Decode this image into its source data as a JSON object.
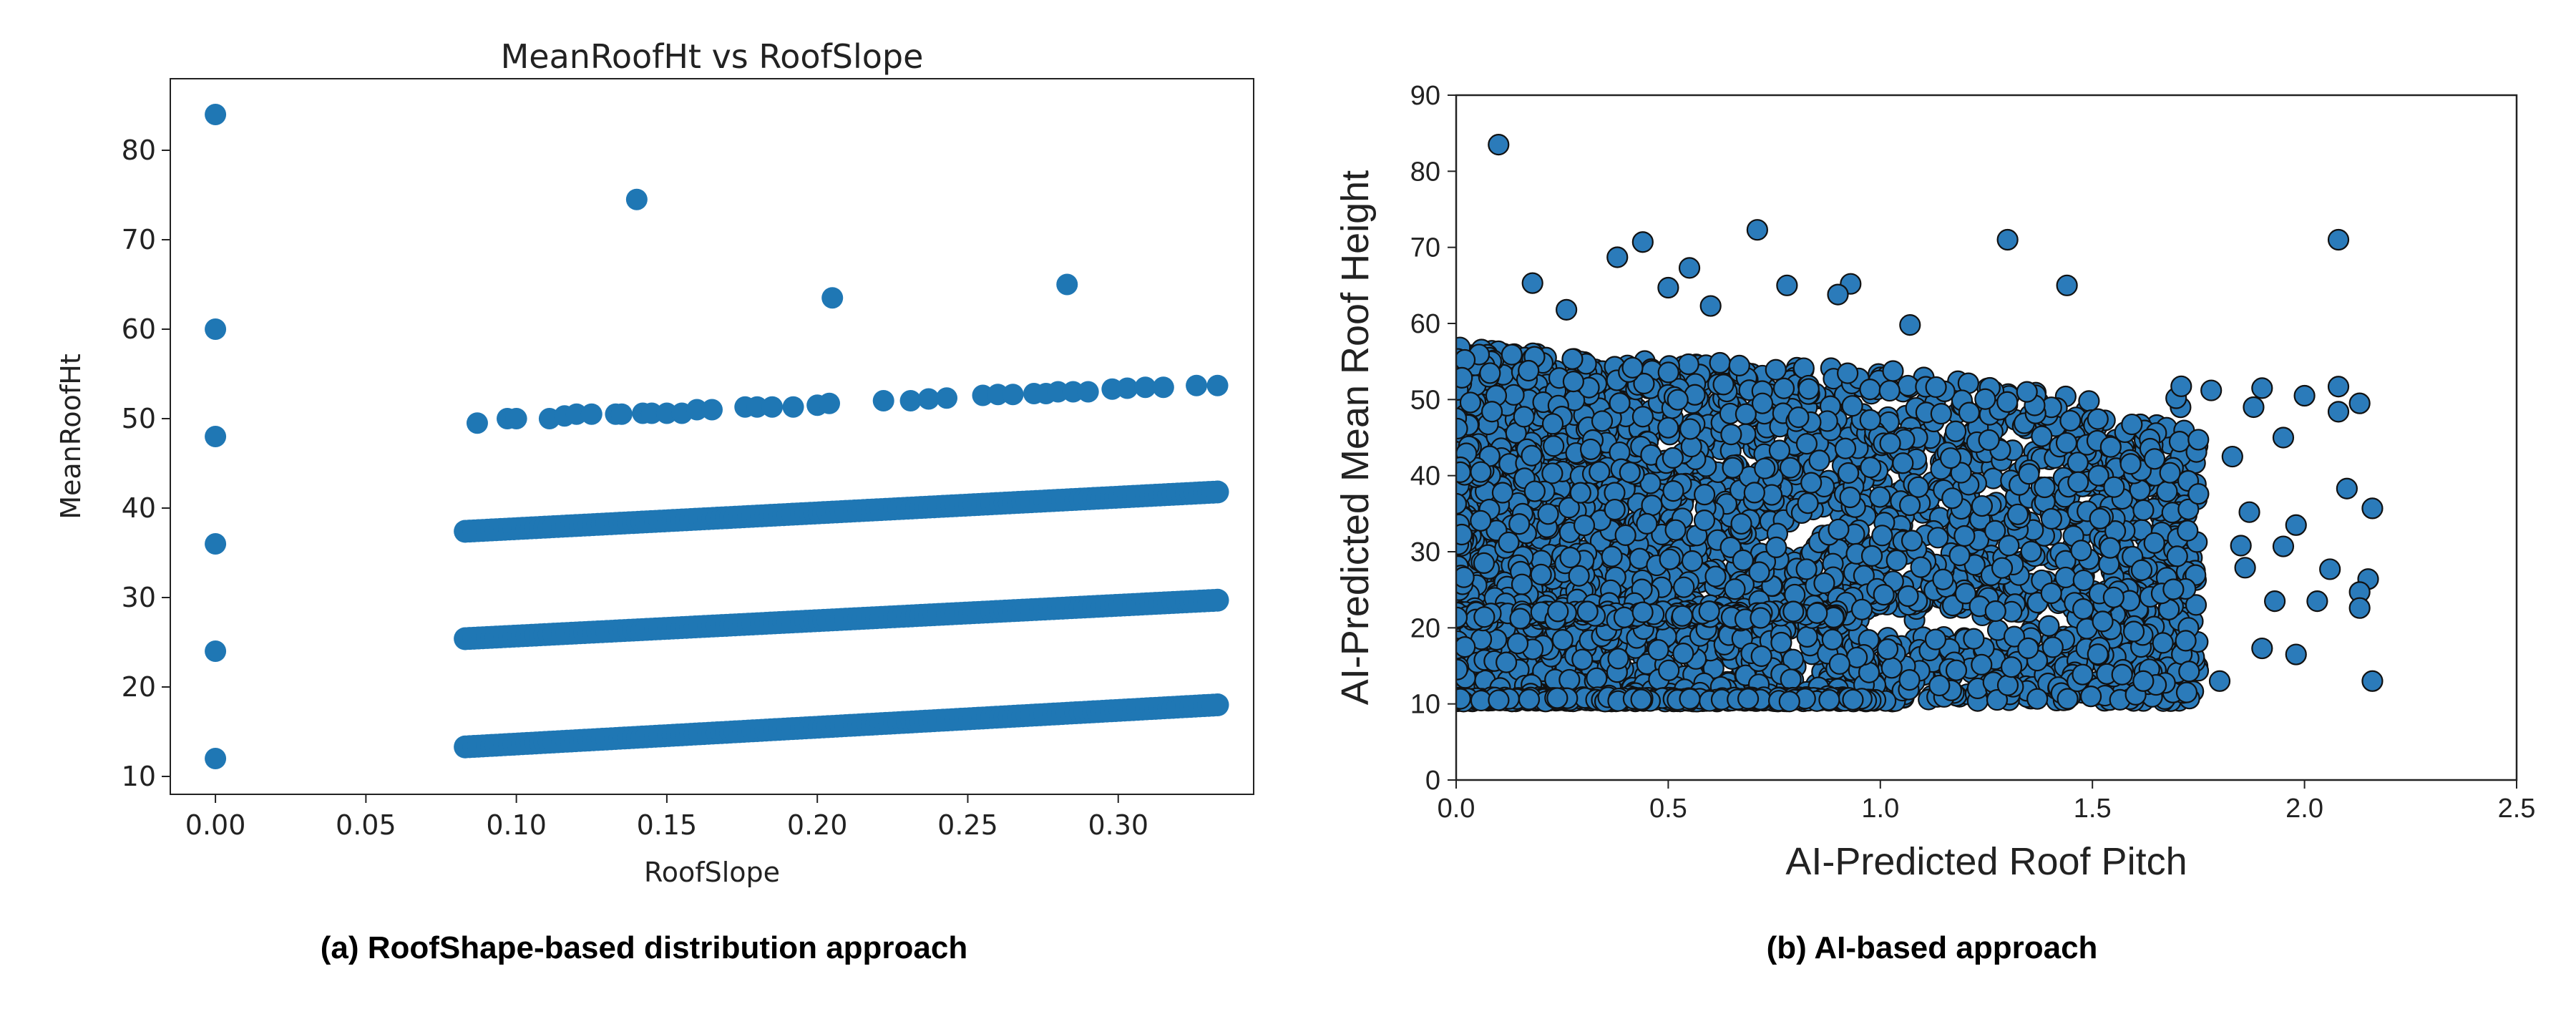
{
  "chart_data": [
    {
      "type": "scatter",
      "title": "MeanRoofHt vs RoofSlope",
      "xlabel": "RoofSlope",
      "ylabel": "MeanRoofHt",
      "xlim": [
        -0.015,
        0.345
      ],
      "ylim": [
        8,
        88
      ],
      "xticks": [
        "0.00",
        "0.05",
        "0.10",
        "0.15",
        "0.20",
        "0.25",
        "0.30"
      ],
      "yticks": [
        "10",
        "20",
        "30",
        "40",
        "50",
        "60",
        "70",
        "80"
      ],
      "marker_color": "#1f77b4",
      "series": [
        {
          "points": [
            [
              0,
              12
            ],
            [
              0,
              24
            ],
            [
              0,
              36
            ],
            [
              0,
              48
            ],
            [
              0,
              60
            ],
            [
              0,
              84
            ],
            [
              0.14,
              74.5
            ],
            [
              0.205,
              63.5
            ],
            [
              0.283,
              65
            ],
            [
              0.087,
              49.5
            ],
            [
              0.097,
              50
            ],
            [
              0.1,
              50
            ],
            [
              0.111,
              50
            ],
            [
              0.116,
              50.3
            ],
            [
              0.12,
              50.5
            ],
            [
              0.125,
              50.5
            ],
            [
              0.133,
              50.5
            ],
            [
              0.135,
              50.5
            ],
            [
              0.142,
              50.6
            ],
            [
              0.145,
              50.6
            ],
            [
              0.15,
              50.6
            ],
            [
              0.155,
              50.6
            ],
            [
              0.16,
              51
            ],
            [
              0.165,
              51
            ],
            [
              0.176,
              51.3
            ],
            [
              0.18,
              51.3
            ],
            [
              0.185,
              51.3
            ],
            [
              0.192,
              51.3
            ],
            [
              0.2,
              51.5
            ],
            [
              0.204,
              51.7
            ],
            [
              0.222,
              52
            ],
            [
              0.231,
              52
            ],
            [
              0.237,
              52.2
            ],
            [
              0.243,
              52.3
            ],
            [
              0.255,
              52.6
            ],
            [
              0.26,
              52.7
            ],
            [
              0.265,
              52.7
            ],
            [
              0.272,
              52.8
            ],
            [
              0.276,
              52.8
            ],
            [
              0.28,
              53
            ],
            [
              0.285,
              53
            ],
            [
              0.29,
              53
            ],
            [
              0.298,
              53.3
            ],
            [
              0.303,
              53.4
            ],
            [
              0.309,
              53.5
            ],
            [
              0.315,
              53.5
            ],
            [
              0.326,
              53.7
            ],
            [
              0.333,
              53.7
            ]
          ]
        }
      ],
      "bands": [
        {
          "x_start": 0.083,
          "x_end": 0.333,
          "y_start": 13.3,
          "y_end": 18
        },
        {
          "x_start": 0.083,
          "x_end": 0.333,
          "y_start": 25.4,
          "y_end": 29.7
        },
        {
          "x_start": 0.083,
          "x_end": 0.333,
          "y_start": 37.4,
          "y_end": 41.8
        }
      ]
    },
    {
      "type": "scatter",
      "title": "",
      "xlabel": "AI-Predicted Roof Pitch",
      "ylabel": "AI-Predicted Mean Roof Height",
      "xlim": [
        0,
        2.5
      ],
      "ylim": [
        0,
        90
      ],
      "xticks": [
        "0.0",
        "0.5",
        "1.0",
        "1.5",
        "2.0",
        "2.5"
      ],
      "yticks": [
        "0",
        "10",
        "20",
        "30",
        "40",
        "50",
        "60",
        "70",
        "80",
        "90"
      ],
      "marker_color": "#2b7bba",
      "edge_color": "#111111",
      "outliers": [
        [
          0.1,
          83.5
        ],
        [
          0.71,
          72.3
        ],
        [
          1.3,
          71
        ],
        [
          2.08,
          71
        ],
        [
          0.44,
          70.7
        ],
        [
          0.38,
          68.7
        ],
        [
          0.55,
          67.3
        ],
        [
          0.18,
          65.3
        ],
        [
          0.93,
          65.2
        ],
        [
          1.44,
          65
        ],
        [
          0.78,
          65
        ],
        [
          0.9,
          63.8
        ],
        [
          0.26,
          61.8
        ],
        [
          0.5,
          64.7
        ],
        [
          0.6,
          62.3
        ],
        [
          1.07,
          59.8
        ],
        [
          1.78,
          51.2
        ],
        [
          1.88,
          49
        ],
        [
          1.9,
          51.5
        ],
        [
          2.0,
          50.5
        ],
        [
          2.08,
          51.7
        ],
        [
          2.13,
          49.5
        ],
        [
          1.95,
          45
        ],
        [
          2.08,
          48.4
        ],
        [
          2.16,
          35.7
        ],
        [
          2.15,
          26.4
        ],
        [
          2.16,
          13
        ],
        [
          1.8,
          13
        ],
        [
          1.9,
          17.3
        ],
        [
          1.98,
          16.5
        ],
        [
          2.03,
          23.5
        ],
        [
          1.86,
          27.9
        ],
        [
          1.65,
          12.5
        ],
        [
          1.72,
          18.3
        ],
        [
          2.1,
          38.3
        ],
        [
          2.13,
          24.7
        ],
        [
          1.75,
          37.6
        ],
        [
          1.95,
          30.7
        ],
        [
          2.06,
          27.7
        ],
        [
          1.93,
          23.5
        ],
        [
          2.13,
          22.6
        ],
        [
          1.83,
          42.5
        ],
        [
          1.85,
          30.8
        ],
        [
          1.98,
          33.5
        ],
        [
          1.87,
          35.2
        ],
        [
          1.62,
          13
        ],
        [
          1.55,
          24
        ],
        [
          1.7,
          29.4
        ]
      ]
    }
  ],
  "captions": {
    "a": "(a) RoofShape-based distribution approach",
    "b": "(b) AI-based approach"
  }
}
